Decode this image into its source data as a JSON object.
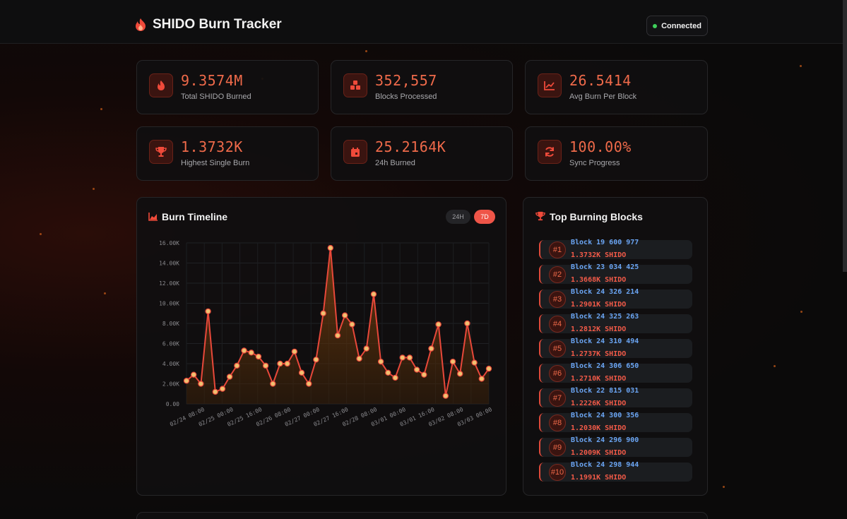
{
  "header": {
    "title": "SHIDO Burn Tracker",
    "status": "Connected"
  },
  "stats": [
    {
      "value": "9.3574M",
      "label": "Total SHIDO Burned",
      "icon": "flame-icon"
    },
    {
      "value": "352,557",
      "label": "Blocks Processed",
      "icon": "cubes-icon"
    },
    {
      "value": "26.5414",
      "label": "Avg Burn Per Block",
      "icon": "line-chart-icon"
    },
    {
      "value": "1.3732K",
      "label": "Highest Single Burn",
      "icon": "trophy-icon"
    },
    {
      "value": "25.2164K",
      "label": "24h Burned",
      "icon": "calendar-icon"
    },
    {
      "value": "100.00%",
      "label": "Sync Progress",
      "icon": "sync-icon"
    }
  ],
  "timeline": {
    "title": "Burn Timeline",
    "tabs": [
      {
        "label": "24H",
        "active": false
      },
      {
        "label": "7D",
        "active": true
      }
    ]
  },
  "chart_data": {
    "type": "area",
    "ylim": [
      0,
      16000
    ],
    "y_ticks": [
      "0.00",
      "2.00K",
      "4.00K",
      "6.00K",
      "8.00K",
      "10.00K",
      "12.00K",
      "14.00K",
      "16.00K"
    ],
    "x_ticks": [
      "02/24 08:00",
      "02/25 00:00",
      "02/25 16:00",
      "02/26 08:00",
      "02/27 00:00",
      "02/27 16:00",
      "02/28 08:00",
      "03/01 00:00",
      "03/01 16:00",
      "03/02 08:00",
      "03/03 00:00"
    ],
    "colors": {
      "line": "#e8483a",
      "point_fill": "#f0c070",
      "area_top": "#8a4a10"
    },
    "series": [
      {
        "values": [
          2300,
          2900,
          2000,
          9200,
          1200,
          1500,
          2700,
          3800,
          5300,
          5100,
          4700,
          3800,
          2000,
          4000,
          4000,
          5200,
          3100,
          2000,
          4400,
          9000,
          15500,
          6800,
          8800,
          7900,
          4500,
          5500,
          10900,
          4200,
          3100,
          2600,
          4600,
          4600,
          3400,
          2900,
          5500,
          7900,
          800,
          4200,
          3000,
          8000,
          4100,
          2500,
          3500
        ]
      }
    ]
  },
  "top_blocks": {
    "title": "Top Burning Blocks",
    "items": [
      {
        "rank": "#1",
        "block": "Block 19 600 977",
        "amount": "1.3732K SHIDO"
      },
      {
        "rank": "#2",
        "block": "Block 23 034 425",
        "amount": "1.3668K SHIDO"
      },
      {
        "rank": "#3",
        "block": "Block 24 326 214",
        "amount": "1.2901K SHIDO"
      },
      {
        "rank": "#4",
        "block": "Block 24 325 263",
        "amount": "1.2812K SHIDO"
      },
      {
        "rank": "#5",
        "block": "Block 24 310 494",
        "amount": "1.2737K SHIDO"
      },
      {
        "rank": "#6",
        "block": "Block 24 306 650",
        "amount": "1.2710K SHIDO"
      },
      {
        "rank": "#7",
        "block": "Block 22 815 031",
        "amount": "1.2226K SHIDO"
      },
      {
        "rank": "#8",
        "block": "Block 24 300 356",
        "amount": "1.2030K SHIDO"
      },
      {
        "rank": "#9",
        "block": "Block 24 296 900",
        "amount": "1.2009K SHIDO"
      },
      {
        "rank": "#10",
        "block": "Block 24 298 944",
        "amount": "1.1991K SHIDO"
      }
    ]
  }
}
